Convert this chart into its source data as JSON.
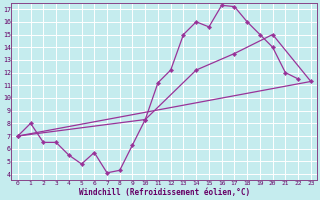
{
  "xlabel": "Windchill (Refroidissement éolien,°C)",
  "bg_color": "#c5ecee",
  "grid_color": "#ffffff",
  "line_color": "#993399",
  "spine_color": "#884488",
  "tick_color": "#660066",
  "xlim": [
    -0.5,
    23.5
  ],
  "ylim": [
    3.5,
    17.5
  ],
  "xticks": [
    0,
    1,
    2,
    3,
    4,
    5,
    6,
    7,
    8,
    9,
    10,
    11,
    12,
    13,
    14,
    15,
    16,
    17,
    18,
    19,
    20,
    21,
    22,
    23
  ],
  "yticks": [
    4,
    5,
    6,
    7,
    8,
    9,
    10,
    11,
    12,
    13,
    14,
    15,
    16,
    17
  ],
  "curve1_x": [
    0,
    1,
    2,
    3,
    4,
    5,
    6,
    7,
    8,
    9,
    10,
    11,
    12,
    13,
    14,
    15,
    16,
    17,
    18,
    19,
    20,
    21,
    22
  ],
  "curve1_y": [
    7.0,
    8.0,
    6.5,
    6.5,
    5.5,
    4.8,
    5.7,
    4.1,
    4.3,
    6.3,
    8.3,
    11.2,
    12.2,
    15.0,
    16.0,
    15.6,
    17.3,
    17.2,
    16.0,
    15.0,
    14.0,
    12.0,
    11.5
  ],
  "curve2_x": [
    0,
    23
  ],
  "curve2_y": [
    7.0,
    11.3
  ],
  "curve3_x": [
    0,
    10,
    14,
    17,
    20,
    23
  ],
  "curve3_y": [
    7.0,
    8.3,
    12.2,
    13.5,
    15.0,
    11.3
  ],
  "lw": 0.9,
  "ms": 2.2
}
